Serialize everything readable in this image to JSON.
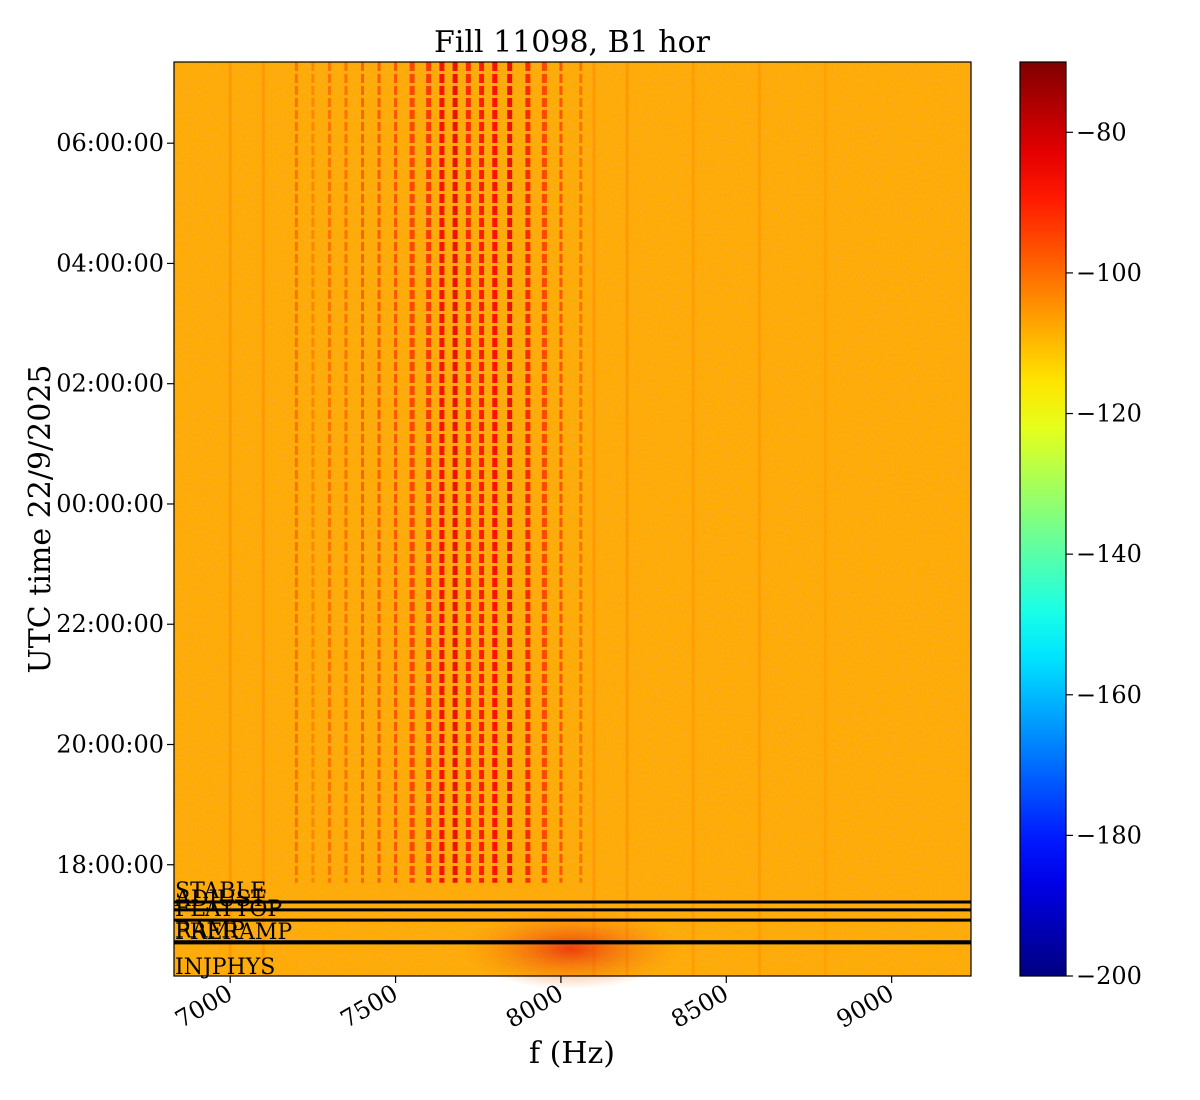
{
  "chart_data": {
    "type": "heatmap",
    "title": "Fill 11098, B1 hor",
    "xlabel": "f (Hz)",
    "ylabel": "UTC time 22/9/2025",
    "x_range": [
      6830,
      9240
    ],
    "x_ticks": [
      7000,
      7500,
      8000,
      8500,
      9000
    ],
    "x_tick_labels": [
      "7000",
      "7500",
      "8000",
      "8500",
      "9000"
    ],
    "y_range_hours": [
      16.15,
      31.35
    ],
    "y_ticks_hours": [
      18,
      20,
      22,
      24,
      26,
      28,
      30
    ],
    "y_tick_labels": [
      "18:00:00",
      "20:00:00",
      "22:00:00",
      "00:00:00",
      "02:00:00",
      "04:00:00",
      "06:00:00"
    ],
    "colorbar": {
      "colormap": "jet",
      "range": [
        -200,
        -70
      ],
      "ticks": [
        -80,
        -100,
        -120,
        -140,
        -160,
        -180,
        -200
      ],
      "tick_labels": [
        "−80",
        "−100",
        "−120",
        "−140",
        "−160",
        "−180",
        "−200"
      ]
    },
    "background_level": -108,
    "lines": {
      "start_hour": 17.7,
      "frequencies": [
        7200,
        7250,
        7300,
        7350,
        7400,
        7450,
        7500,
        7550,
        7600,
        7640,
        7680,
        7720,
        7760,
        7800,
        7845,
        7900,
        7950,
        8000,
        8060
      ],
      "levels": [
        -100,
        -103,
        -100,
        -100,
        -98,
        -97,
        -96,
        -94,
        -92,
        -86,
        -84,
        -90,
        -88,
        -86,
        -84,
        -90,
        -94,
        -96,
        -100
      ]
    },
    "faint_lines": {
      "frequencies": [
        7000,
        7100,
        8100,
        8200,
        8400,
        8600,
        8800
      ],
      "levels": [
        -104,
        -104,
        -104,
        -104,
        -105,
        -105,
        -106
      ]
    },
    "hotspot": {
      "center_hz": 8030,
      "center_hour": 16.6,
      "level": -90
    },
    "beam_modes": [
      {
        "label": "STABLE",
        "hour": 17.38
      },
      {
        "label": "ADJUST",
        "hour": 17.25
      },
      {
        "label": "FLATTOP",
        "hour": 17.08
      },
      {
        "label": "RAMP",
        "hour": 16.72
      },
      {
        "label": "PRERAMP",
        "hour": 16.7
      },
      {
        "label": "INJPHYS",
        "hour": 16.15
      }
    ]
  }
}
